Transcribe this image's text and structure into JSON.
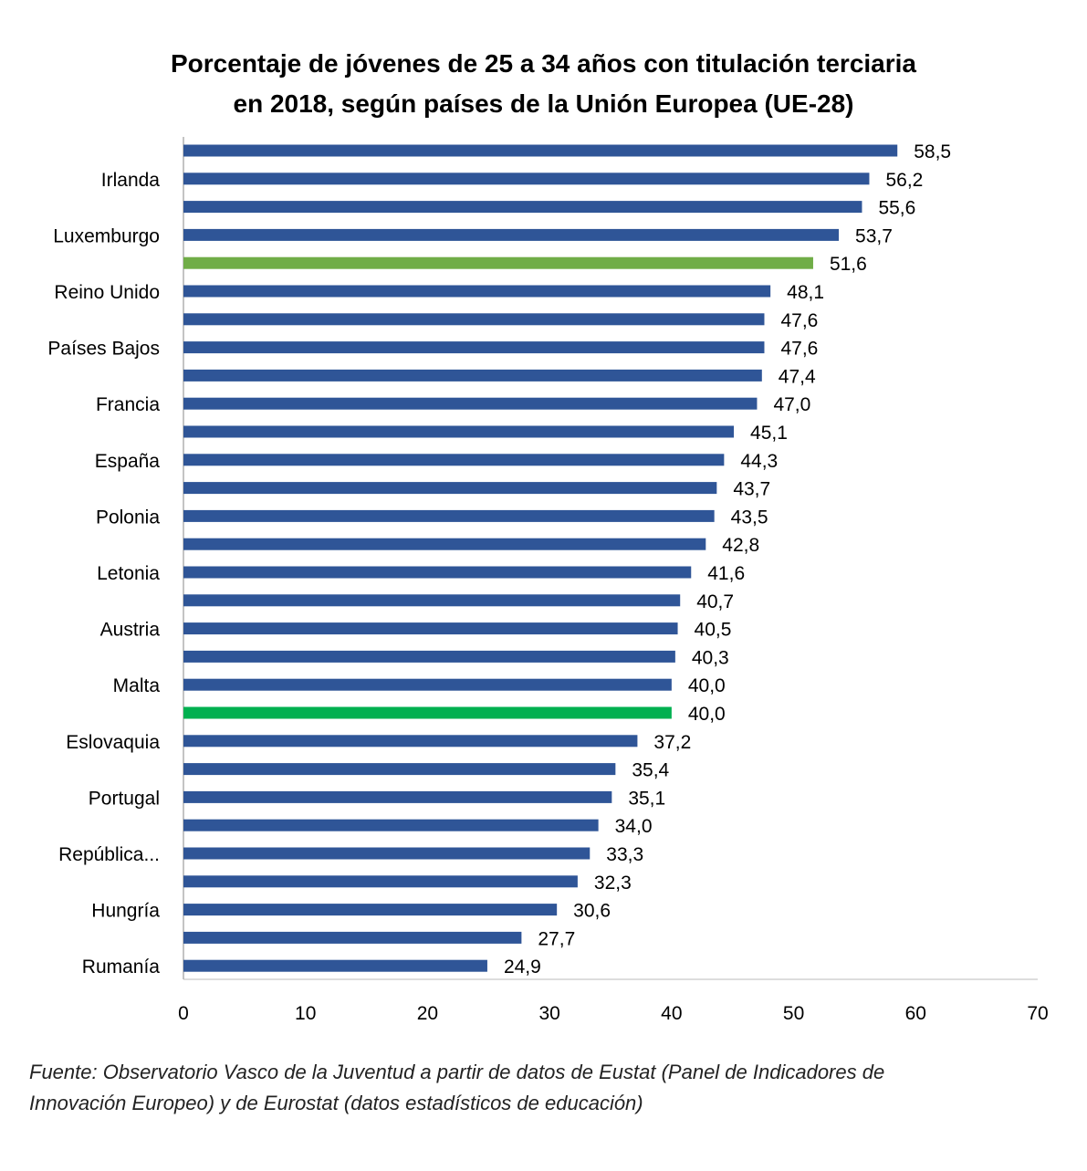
{
  "chart_data": {
    "type": "bar",
    "orientation": "horizontal",
    "title_lines": [
      "Porcentaje de jóvenes de 25 a 34 años con titulación terciaria",
      "en 2018, según países de la Unión Europea (UE-28)"
    ],
    "categories": [
      "",
      "Irlanda",
      "",
      "Luxemburgo",
      "",
      "Reino Unido",
      "",
      "Países Bajos",
      "",
      "Francia",
      "",
      "España",
      "",
      "Polonia",
      "",
      "Letonia",
      "",
      "Austria",
      "",
      "Malta",
      "",
      "Eslovaquia",
      "",
      "Portugal",
      "",
      "República...",
      "",
      "Hungría",
      "",
      "Rumanía"
    ],
    "values": [
      58.5,
      56.2,
      55.6,
      53.7,
      51.6,
      48.1,
      47.6,
      47.6,
      47.4,
      47.0,
      45.1,
      44.3,
      43.7,
      43.5,
      42.8,
      41.6,
      40.7,
      40.5,
      40.3,
      40.0,
      40.0,
      37.2,
      35.4,
      35.1,
      34.0,
      33.3,
      32.3,
      30.6,
      27.7,
      24.9
    ],
    "data_labels": [
      "58,5",
      "56,2",
      "55,6",
      "53,7",
      "51,6",
      "48,1",
      "47,6",
      "47,6",
      "47,4",
      "47,0",
      "45,1",
      "44,3",
      "43,7",
      "43,5",
      "42,8",
      "41,6",
      "40,7",
      "40,5",
      "40,3",
      "40,0",
      "40,0",
      "37,2",
      "35,4",
      "35,1",
      "34,0",
      "33,3",
      "32,3",
      "30,6",
      "27,7",
      "24,9"
    ],
    "bar_colors": {
      "default": "#2F5597",
      "4": "#70AD47",
      "20": "#00B050"
    },
    "xlim": [
      0,
      70
    ],
    "xticks": [
      "0",
      "10",
      "20",
      "30",
      "40",
      "50",
      "60",
      "70"
    ],
    "grid": false,
    "legend": "none"
  },
  "footnote_lines": [
    "Fuente: Observatorio Vasco de la Juventud a partir de datos de Eustat (Panel de Indicadores de",
    "Innovación Europeo) y de Eurostat (datos estadísticos de educación)"
  ]
}
